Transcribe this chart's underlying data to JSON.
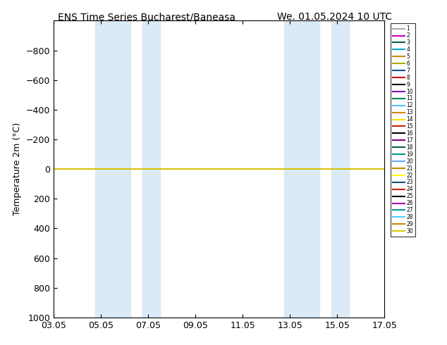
{
  "title_left": "ENS Time Series Bucharest/Baneasa",
  "title_right": "We. 01.05.2024 10 UTC",
  "ylabel": "Temperature 2m (°C)",
  "ylim_top": -1000,
  "ylim_bottom": 1000,
  "yticks": [
    -800,
    -600,
    -400,
    -200,
    0,
    200,
    400,
    600,
    800,
    1000
  ],
  "xlim": [
    0,
    14
  ],
  "xtick_positions": [
    0,
    2,
    4,
    6,
    8,
    10,
    12,
    14
  ],
  "xtick_labels": [
    "03.05",
    "05.05",
    "07.05",
    "09.05",
    "11.05",
    "13.05",
    "15.05",
    "17.05"
  ],
  "shaded_bands": [
    [
      1.75,
      3.25
    ],
    [
      3.75,
      4.5
    ],
    [
      9.75,
      11.25
    ],
    [
      11.75,
      12.5
    ]
  ],
  "shaded_color": "#daeaf7",
  "background_color": "#ffffff",
  "member_colors": [
    "#aaaaaa",
    "#cc00cc",
    "#006600",
    "#00aadd",
    "#cc8800",
    "#aaaa00",
    "#005588",
    "#cc0000",
    "#000000",
    "#8800cc",
    "#008844",
    "#44bbff",
    "#cc8800",
    "#ffdd00",
    "#cc3300",
    "#000000",
    "#8800aa",
    "#006644",
    "#00aaaa",
    "#55aaff",
    "#cc8800",
    "#ffff00",
    "#004488",
    "#cc2200",
    "#000000",
    "#aa00aa",
    "#009988",
    "#44ccff",
    "#cc8800",
    "#ddcc00"
  ],
  "member_labels": [
    "1",
    "2",
    "3",
    "4",
    "5",
    "6",
    "7",
    "8",
    "9",
    "10",
    "11",
    "12",
    "13",
    "14",
    "15",
    "16",
    "17",
    "18",
    "19",
    "20",
    "21",
    "22",
    "23",
    "24",
    "25",
    "26",
    "27",
    "28",
    "29",
    "30"
  ]
}
